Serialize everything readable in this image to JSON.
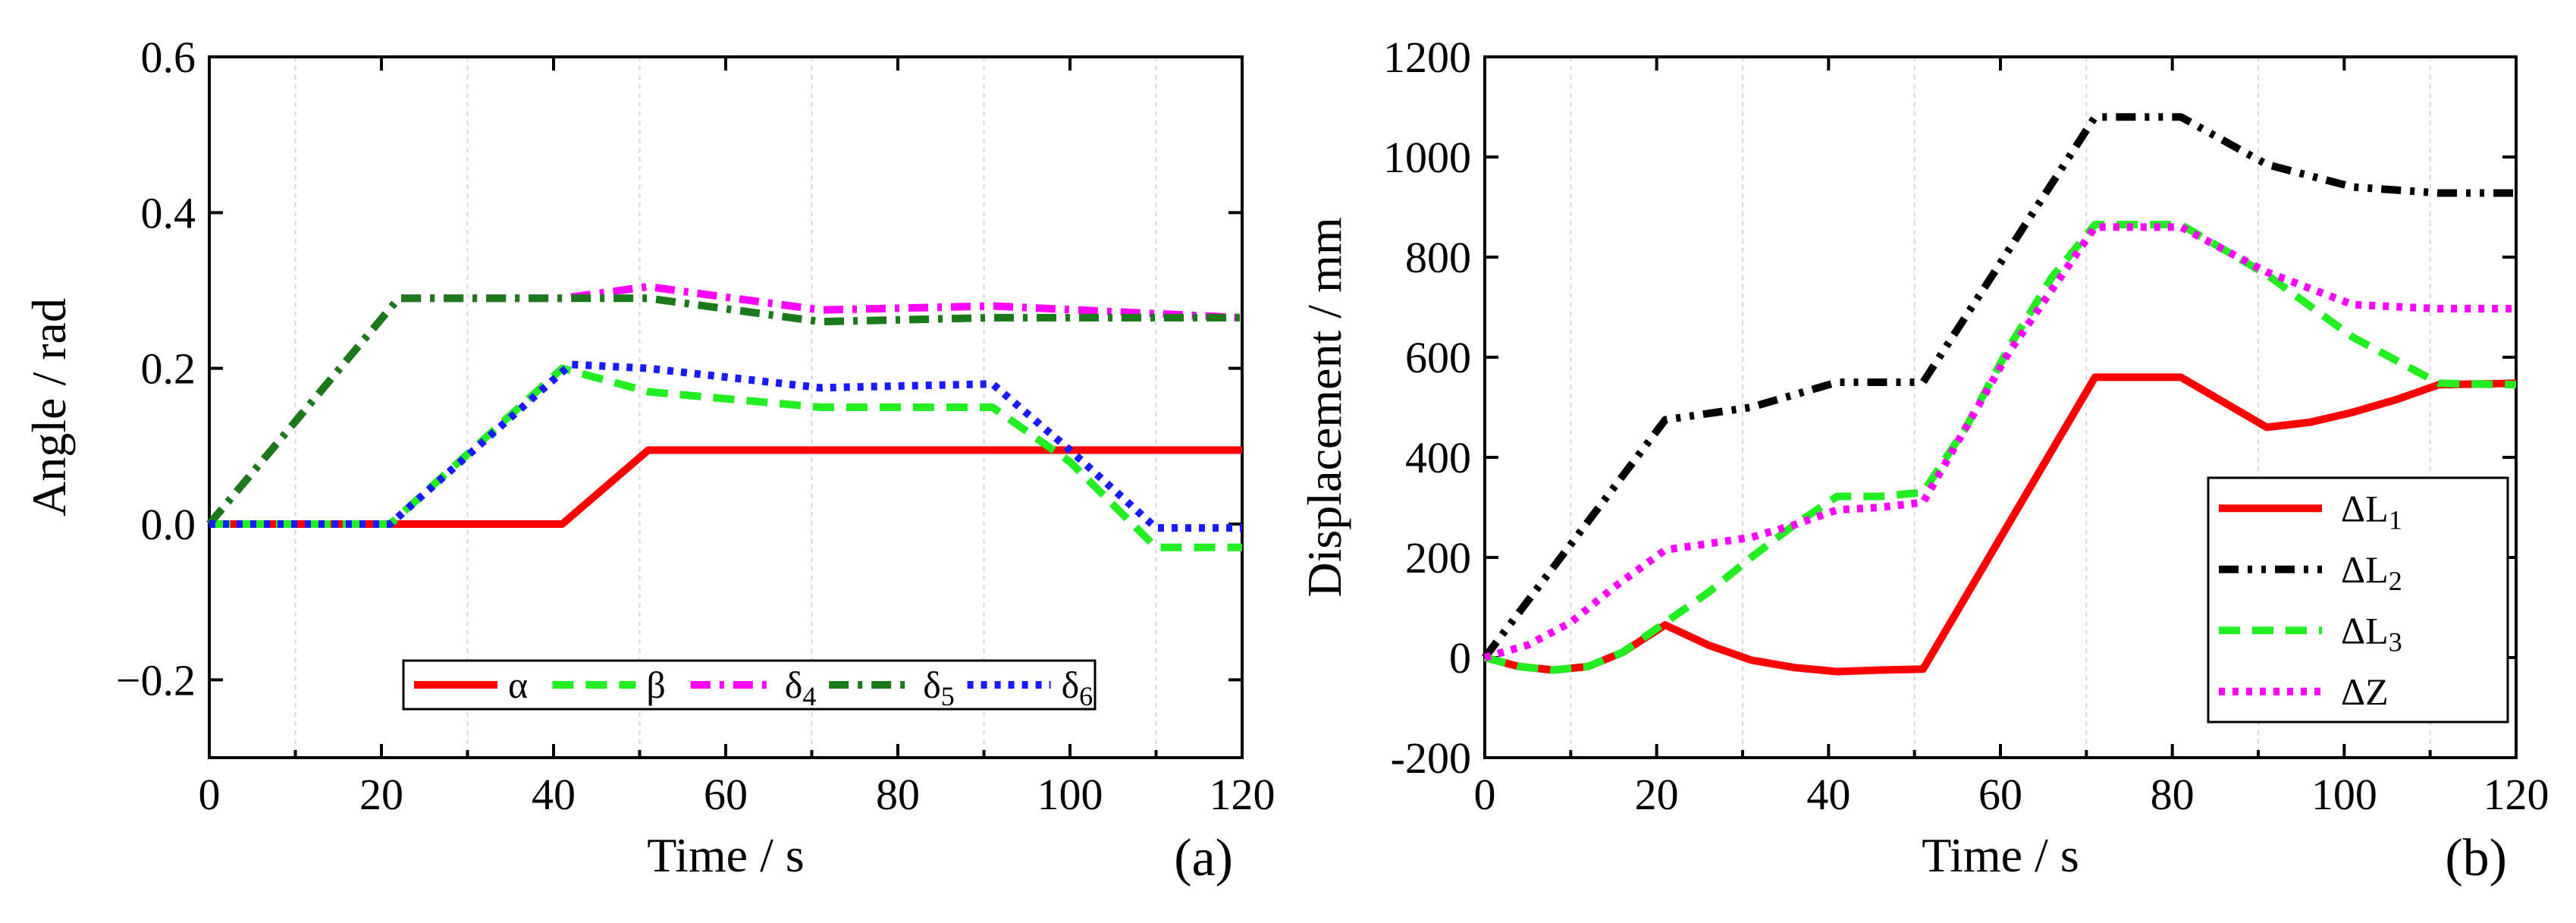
{
  "chart_data": [
    {
      "id": "a",
      "type": "line",
      "panel_label": "(a)",
      "xlabel": "Time / s",
      "ylabel": "Angle / rad",
      "xlim": [
        0,
        120
      ],
      "ylim": [
        -0.3,
        0.6
      ],
      "xticks": [
        0,
        20,
        40,
        60,
        80,
        100,
        120
      ],
      "xtick_labels": [
        "0",
        "20",
        "40",
        "60",
        "80",
        "100",
        "120"
      ],
      "yticks": [
        -0.2,
        0.0,
        0.2,
        0.4,
        0.6
      ],
      "ytick_labels": [
        "−0.2",
        "0.0",
        "0.2",
        "0.4",
        "0.6"
      ],
      "grid_x": [
        10,
        30,
        50,
        70,
        90,
        110
      ],
      "legend": {
        "placement": "bottom-center",
        "layout": "horizontal"
      },
      "series": [
        {
          "name": "α",
          "color": "#ff0000",
          "style": "solid",
          "x": [
            0,
            41,
            51,
            120
          ],
          "y": [
            0,
            0,
            0.095,
            0.095
          ]
        },
        {
          "name": "β",
          "color": "#22ee22",
          "style": "dash",
          "x": [
            0,
            21,
            41,
            51,
            71,
            91,
            100,
            110,
            120
          ],
          "y": [
            0,
            0,
            0.2,
            0.17,
            0.15,
            0.15,
            0.08,
            -0.03,
            -0.03
          ]
        },
        {
          "name": "δ4",
          "color": "#ff00ff",
          "style": "dashdot",
          "x": [
            0,
            22,
            41,
            51,
            71,
            91,
            120
          ],
          "y": [
            0,
            0.29,
            0.29,
            0.305,
            0.275,
            0.28,
            0.265
          ]
        },
        {
          "name": "δ5",
          "color": "#1a7a1a",
          "style": "dashdot",
          "x": [
            0,
            22,
            51,
            71,
            91,
            120
          ],
          "y": [
            0,
            0.29,
            0.29,
            0.26,
            0.265,
            0.265
          ]
        },
        {
          "name": "δ6",
          "color": "#1a1aff",
          "style": "dot",
          "x": [
            0,
            21,
            42,
            51,
            71,
            91,
            100,
            110,
            120
          ],
          "y": [
            0,
            0,
            0.205,
            0.2,
            0.175,
            0.18,
            0.095,
            -0.005,
            -0.005
          ]
        }
      ]
    },
    {
      "id": "b",
      "type": "line",
      "panel_label": "(b)",
      "xlabel": "Time / s",
      "ylabel": "Displacement / mm",
      "xlim": [
        0,
        120
      ],
      "ylim": [
        -200,
        1200
      ],
      "xticks": [
        0,
        20,
        40,
        60,
        80,
        100,
        120
      ],
      "xtick_labels": [
        "0",
        "20",
        "40",
        "60",
        "80",
        "100",
        "120"
      ],
      "yticks": [
        -200,
        0,
        200,
        400,
        600,
        800,
        1000,
        1200
      ],
      "ytick_labels": [
        "-200",
        "0",
        "200",
        "400",
        "600",
        "800",
        "1000",
        "1200"
      ],
      "grid_x": [
        10,
        30,
        50,
        70,
        90,
        110
      ],
      "legend": {
        "placement": "bottom-right",
        "layout": "vertical"
      },
      "series": [
        {
          "name": "ΔL1",
          "color": "#ff0000",
          "style": "solid",
          "x": [
            0,
            4,
            8,
            12,
            16,
            21,
            26,
            31,
            36,
            41,
            46,
            51,
            71,
            81,
            91,
            96,
            101,
            106,
            111,
            120
          ],
          "y": [
            0,
            -18,
            -25,
            -18,
            10,
            65,
            25,
            -5,
            -20,
            -28,
            -25,
            -23,
            560,
            560,
            460,
            470,
            490,
            515,
            545,
            548
          ]
        },
        {
          "name": "ΔL2",
          "color": "#000000",
          "style": "dashdotdot",
          "x": [
            0,
            21,
            31,
            41,
            51,
            71,
            81,
            91,
            101,
            111,
            120
          ],
          "y": [
            0,
            475,
            500,
            550,
            550,
            1080,
            1080,
            985,
            940,
            928,
            928
          ]
        },
        {
          "name": "ΔL3",
          "color": "#22ee22",
          "style": "dash",
          "x": [
            0,
            4,
            8,
            12,
            16,
            21,
            26,
            31,
            36,
            41,
            46,
            51,
            56,
            61,
            66,
            71,
            81,
            91,
            101,
            111,
            120
          ],
          "y": [
            0,
            -18,
            -25,
            -18,
            10,
            70,
            130,
            200,
            265,
            322,
            322,
            330,
            460,
            620,
            760,
            865,
            865,
            765,
            640,
            548,
            545
          ]
        },
        {
          "name": "ΔZ",
          "color": "#ff00ff",
          "style": "dot",
          "x": [
            0,
            5,
            10,
            15,
            21,
            31,
            36,
            41,
            46,
            51,
            61,
            71,
            81,
            91,
            101,
            111,
            120
          ],
          "y": [
            0,
            25,
            70,
            140,
            215,
            240,
            265,
            295,
            300,
            310,
            610,
            860,
            860,
            770,
            705,
            697,
            697
          ]
        }
      ]
    }
  ]
}
